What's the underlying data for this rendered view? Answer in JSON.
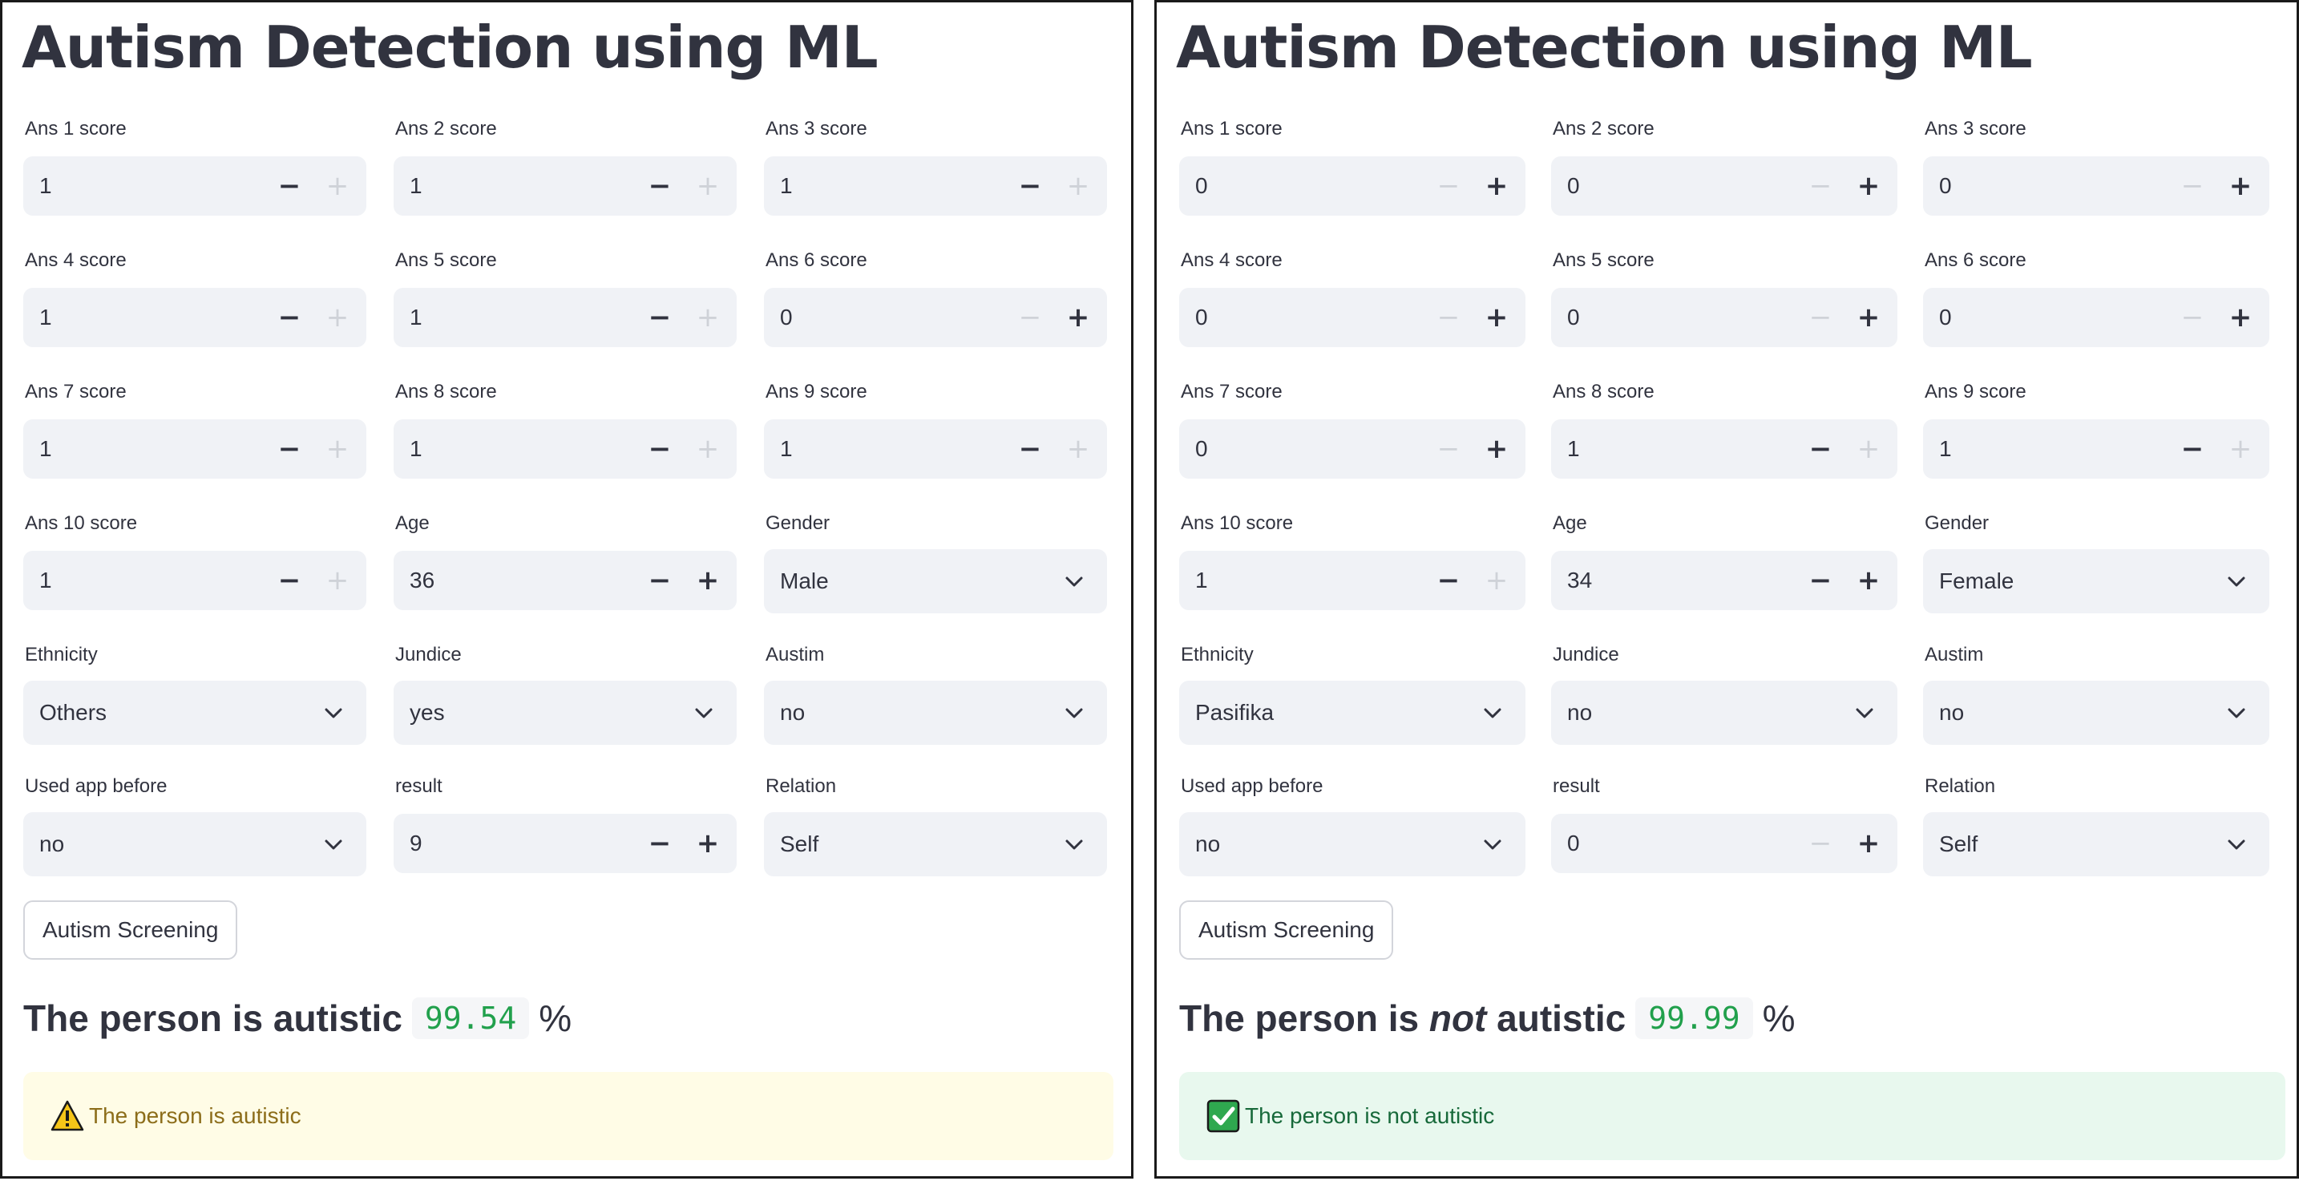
{
  "panels": [
    {
      "title": "Autism Detection using ML",
      "fields": [
        {
          "label": "Ans 1 score",
          "kind": "number",
          "value": "1",
          "minus_enabled": true,
          "plus_enabled": false
        },
        {
          "label": "Ans 2 score",
          "kind": "number",
          "value": "1",
          "minus_enabled": true,
          "plus_enabled": false
        },
        {
          "label": "Ans 3 score",
          "kind": "number",
          "value": "1",
          "minus_enabled": true,
          "plus_enabled": false
        },
        {
          "label": "Ans 4 score",
          "kind": "number",
          "value": "1",
          "minus_enabled": true,
          "plus_enabled": false
        },
        {
          "label": "Ans 5 score",
          "kind": "number",
          "value": "1",
          "minus_enabled": true,
          "plus_enabled": false
        },
        {
          "label": "Ans 6 score",
          "kind": "number",
          "value": "0",
          "minus_enabled": false,
          "plus_enabled": true
        },
        {
          "label": "Ans 7 score",
          "kind": "number",
          "value": "1",
          "minus_enabled": true,
          "plus_enabled": false
        },
        {
          "label": "Ans 8 score",
          "kind": "number",
          "value": "1",
          "minus_enabled": true,
          "plus_enabled": false
        },
        {
          "label": "Ans 9 score",
          "kind": "number",
          "value": "1",
          "minus_enabled": true,
          "plus_enabled": false
        },
        {
          "label": "Ans 10 score",
          "kind": "number",
          "value": "1",
          "minus_enabled": true,
          "plus_enabled": false
        },
        {
          "label": "Age",
          "kind": "number",
          "value": "36",
          "minus_enabled": true,
          "plus_enabled": true
        },
        {
          "label": "Gender",
          "kind": "select",
          "value": "Male"
        },
        {
          "label": "Ethnicity",
          "kind": "select",
          "value": "Others"
        },
        {
          "label": "Jundice",
          "kind": "select",
          "value": "yes"
        },
        {
          "label": "Austim",
          "kind": "select",
          "value": "no"
        },
        {
          "label": "Used app before",
          "kind": "select",
          "value": "no"
        },
        {
          "label": "result",
          "kind": "number",
          "value": "9",
          "minus_enabled": true,
          "plus_enabled": true
        },
        {
          "label": "Relation",
          "kind": "select",
          "value": "Self"
        }
      ],
      "button_label": "Autism Screening",
      "result": {
        "prefix": "The person is ",
        "not_word": "",
        "suffix": "autistic",
        "score": "99.54",
        "unit": "%"
      },
      "alert": {
        "type": "warning",
        "icon": "warning-triangle-icon",
        "text": "The person is autistic"
      }
    },
    {
      "title": "Autism Detection using ML",
      "fields": [
        {
          "label": "Ans 1 score",
          "kind": "number",
          "value": "0",
          "minus_enabled": false,
          "plus_enabled": true
        },
        {
          "label": "Ans 2 score",
          "kind": "number",
          "value": "0",
          "minus_enabled": false,
          "plus_enabled": true
        },
        {
          "label": "Ans 3 score",
          "kind": "number",
          "value": "0",
          "minus_enabled": false,
          "plus_enabled": true
        },
        {
          "label": "Ans 4 score",
          "kind": "number",
          "value": "0",
          "minus_enabled": false,
          "plus_enabled": true
        },
        {
          "label": "Ans 5 score",
          "kind": "number",
          "value": "0",
          "minus_enabled": false,
          "plus_enabled": true
        },
        {
          "label": "Ans 6 score",
          "kind": "number",
          "value": "0",
          "minus_enabled": false,
          "plus_enabled": true
        },
        {
          "label": "Ans 7 score",
          "kind": "number",
          "value": "0",
          "minus_enabled": false,
          "plus_enabled": true
        },
        {
          "label": "Ans 8 score",
          "kind": "number",
          "value": "1",
          "minus_enabled": true,
          "plus_enabled": false
        },
        {
          "label": "Ans 9 score",
          "kind": "number",
          "value": "1",
          "minus_enabled": true,
          "plus_enabled": false
        },
        {
          "label": "Ans 10 score",
          "kind": "number",
          "value": "1",
          "minus_enabled": true,
          "plus_enabled": false
        },
        {
          "label": "Age",
          "kind": "number",
          "value": "34",
          "minus_enabled": true,
          "plus_enabled": true
        },
        {
          "label": "Gender",
          "kind": "select",
          "value": "Female"
        },
        {
          "label": "Ethnicity",
          "kind": "select",
          "value": "Pasifika"
        },
        {
          "label": "Jundice",
          "kind": "select",
          "value": "no"
        },
        {
          "label": "Austim",
          "kind": "select",
          "value": "no"
        },
        {
          "label": "Used app before",
          "kind": "select",
          "value": "no"
        },
        {
          "label": "result",
          "kind": "number",
          "value": "0",
          "minus_enabled": false,
          "plus_enabled": true
        },
        {
          "label": "Relation",
          "kind": "select",
          "value": "Self"
        }
      ],
      "button_label": "Autism Screening",
      "result": {
        "prefix": "The person is ",
        "not_word": "not",
        "suffix": " autistic",
        "score": "99.99",
        "unit": "%"
      },
      "alert": {
        "type": "success",
        "icon": "check-mark-icon",
        "text": "The person is not autistic"
      }
    }
  ],
  "glyphs": {
    "minus": "−",
    "plus": "+"
  },
  "colors": {
    "score_text": "#21a04c",
    "warning_bg": "#fffce6",
    "warning_text": "#8c6d1a",
    "success_bg": "#e8f8ee",
    "success_text": "#17693a",
    "input_bg": "#f0f2f6"
  }
}
